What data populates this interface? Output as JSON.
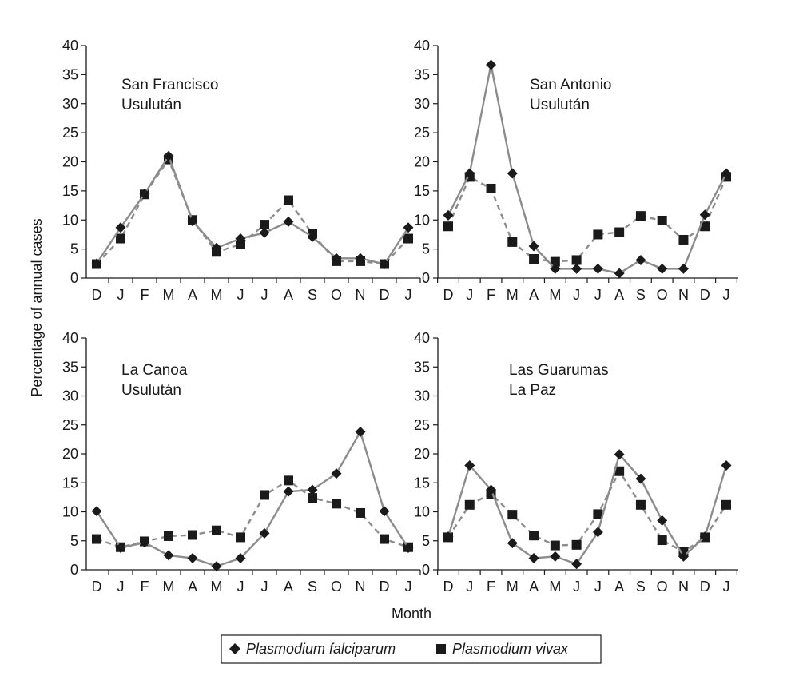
{
  "figure": {
    "ylabel": "Percentage of annual cases",
    "xlabel": "Month"
  },
  "legend": {
    "items": [
      {
        "label": "Plasmodium falciparum",
        "marker": "diamond"
      },
      {
        "label": "Plasmodium vivax",
        "marker": "square"
      }
    ]
  },
  "colors": {
    "falciparum_line": "#8c8c8c",
    "vivax_line": "#8c8c8c",
    "marker": "#1a1a1a",
    "axis": "#1a1a1a"
  },
  "chart_data": [
    {
      "type": "line",
      "title_lines": [
        "San Francisco",
        "Usulután"
      ],
      "categories": [
        "D",
        "J",
        "F",
        "M",
        "A",
        "M",
        "J",
        "J",
        "A",
        "S",
        "O",
        "N",
        "D",
        "J"
      ],
      "ylim": [
        0,
        40
      ],
      "yticks": [
        0,
        5,
        10,
        15,
        20,
        25,
        30,
        35,
        40
      ],
      "series": [
        {
          "name": "Plasmodium falciparum",
          "line_style": "solid",
          "marker": "diamond",
          "values": [
            2.5,
            8.7,
            14.5,
            21.0,
            9.8,
            5.2,
            6.8,
            7.8,
            9.7,
            7.1,
            3.4,
            3.4,
            2.4,
            8.7
          ]
        },
        {
          "name": "Plasmodium vivax",
          "line_style": "dashed",
          "marker": "square",
          "values": [
            2.4,
            6.8,
            14.4,
            20.4,
            10.0,
            4.5,
            5.8,
            9.2,
            13.4,
            7.6,
            2.9,
            2.9,
            2.4,
            6.8
          ]
        }
      ]
    },
    {
      "type": "line",
      "title_lines": [
        "San Antonio",
        "Usulután"
      ],
      "categories": [
        "D",
        "J",
        "F",
        "M",
        "A",
        "M",
        "J",
        "J",
        "A",
        "S",
        "O",
        "N",
        "D",
        "J"
      ],
      "ylim": [
        0,
        40
      ],
      "yticks": [
        0,
        5,
        10,
        15,
        20,
        25,
        30,
        35,
        40
      ],
      "series": [
        {
          "name": "Plasmodium falciparum",
          "line_style": "solid",
          "marker": "diamond",
          "values": [
            10.8,
            18.0,
            36.7,
            18.0,
            5.5,
            1.6,
            1.6,
            1.6,
            0.8,
            3.1,
            1.6,
            1.6,
            10.9,
            18.0
          ]
        },
        {
          "name": "Plasmodium vivax",
          "line_style": "dashed",
          "marker": "square",
          "values": [
            8.9,
            17.4,
            15.4,
            6.2,
            3.3,
            2.8,
            3.1,
            7.5,
            7.9,
            10.7,
            9.9,
            6.6,
            8.9,
            17.4
          ]
        }
      ]
    },
    {
      "type": "line",
      "title_lines": [
        "La Canoa",
        "Usulután"
      ],
      "categories": [
        "D",
        "J",
        "F",
        "M",
        "A",
        "M",
        "J",
        "J",
        "A",
        "S",
        "O",
        "N",
        "D",
        "J"
      ],
      "ylim": [
        0,
        40
      ],
      "yticks": [
        0,
        5,
        10,
        15,
        20,
        25,
        30,
        35,
        40
      ],
      "series": [
        {
          "name": "Plasmodium falciparum",
          "line_style": "solid",
          "marker": "diamond",
          "values": [
            10.1,
            3.8,
            4.7,
            2.5,
            2.0,
            0.6,
            2.0,
            6.3,
            13.5,
            13.8,
            16.6,
            23.8,
            10.1,
            3.8
          ]
        },
        {
          "name": "Plasmodium vivax",
          "line_style": "dashed",
          "marker": "square",
          "values": [
            5.3,
            3.9,
            4.9,
            5.8,
            6.0,
            6.8,
            5.6,
            12.9,
            15.4,
            12.4,
            11.4,
            9.8,
            5.3,
            3.9
          ]
        }
      ]
    },
    {
      "type": "line",
      "title_lines": [
        "Las Guarumas",
        "La Paz"
      ],
      "categories": [
        "D",
        "J",
        "F",
        "M",
        "A",
        "M",
        "J",
        "J",
        "A",
        "S",
        "O",
        "N",
        "D",
        "J"
      ],
      "ylim": [
        0,
        40
      ],
      "yticks": [
        0,
        5,
        10,
        15,
        20,
        25,
        30,
        35,
        40
      ],
      "series": [
        {
          "name": "Plasmodium falciparum",
          "line_style": "solid",
          "marker": "diamond",
          "values": [
            5.7,
            18.0,
            13.8,
            4.6,
            2.0,
            2.3,
            1.0,
            6.5,
            19.9,
            15.7,
            8.5,
            2.3,
            5.7,
            18.0
          ]
        },
        {
          "name": "Plasmodium vivax",
          "line_style": "dashed",
          "marker": "square",
          "values": [
            5.6,
            11.2,
            13.1,
            9.5,
            5.9,
            4.2,
            4.3,
            9.6,
            17.0,
            11.2,
            5.1,
            3.1,
            5.6,
            11.2
          ]
        }
      ]
    }
  ]
}
